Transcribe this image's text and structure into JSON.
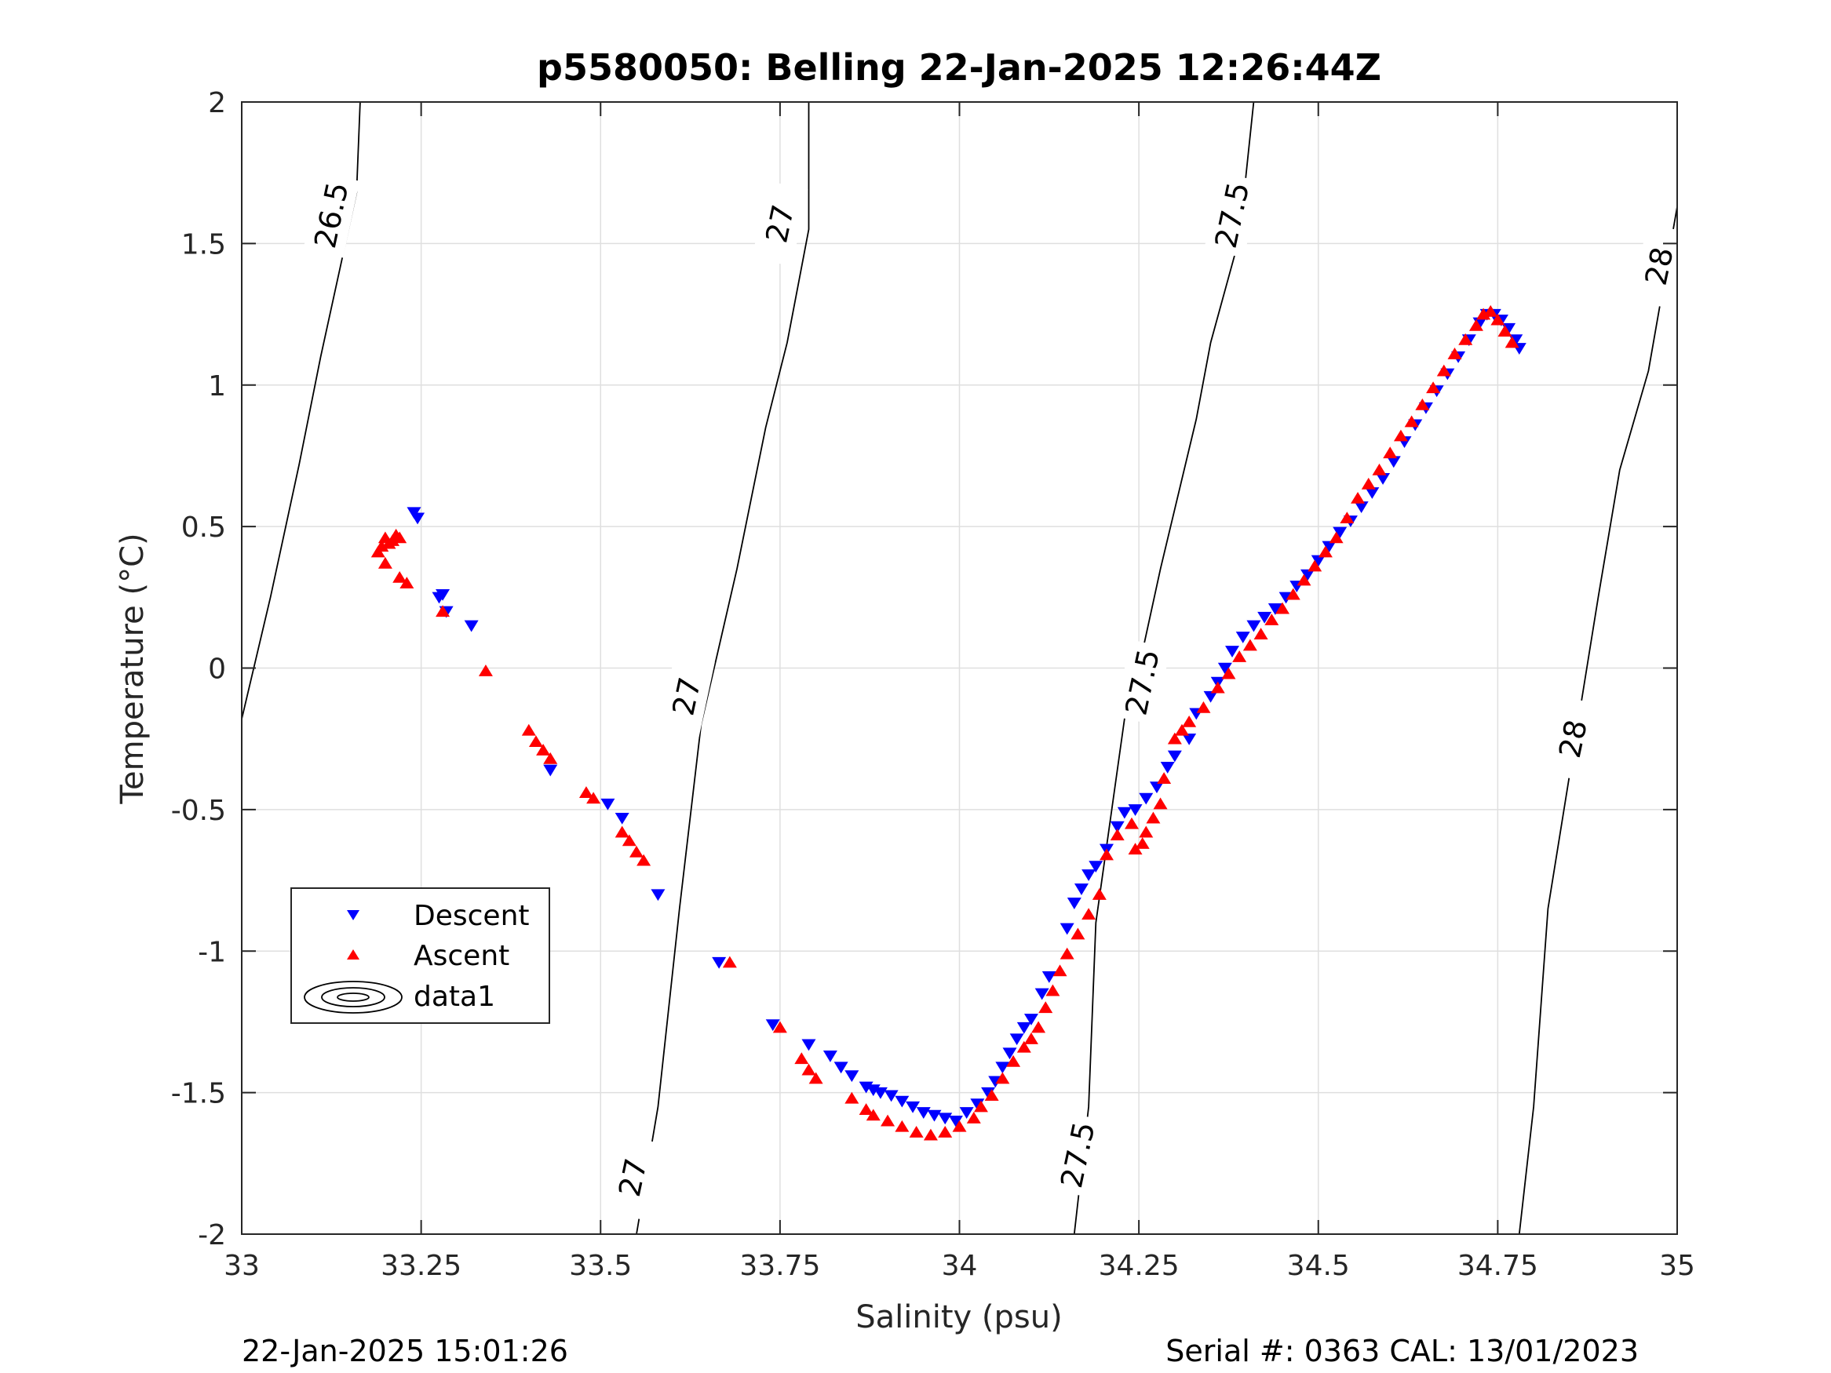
{
  "chart_data": {
    "type": "scatter",
    "title": "p5580050: Belling 22-Jan-2025 12:26:44Z",
    "xlabel": "Salinity (psu)",
    "ylabel": "Temperature (°C)",
    "xlim": [
      33,
      35
    ],
    "ylim": [
      -2,
      2
    ],
    "grid": true,
    "x_ticks": [
      33,
      33.25,
      33.5,
      33.75,
      34,
      34.25,
      34.5,
      34.75,
      35
    ],
    "x_tick_labels": [
      "33",
      "33.25",
      "33.5",
      "33.75",
      "34",
      "34.25",
      "34.5",
      "34.75",
      "35"
    ],
    "y_ticks": [
      2,
      1.5,
      1,
      0.5,
      0,
      -0.5,
      -1,
      -1.5,
      -2
    ],
    "y_tick_labels": [
      "2",
      "1.5",
      "1",
      "0.5",
      "0",
      "-0.5",
      "-1",
      "-1.5",
      "-2"
    ],
    "legend_position": "lower-left",
    "series": [
      {
        "name": "Descent",
        "marker": "triangle-down",
        "color": "#0000ff",
        "points": [
          [
            33.24,
            0.55
          ],
          [
            33.245,
            0.53
          ],
          [
            33.28,
            0.26
          ],
          [
            33.275,
            0.25
          ],
          [
            33.285,
            0.2
          ],
          [
            33.32,
            0.15
          ],
          [
            33.43,
            -0.36
          ],
          [
            33.51,
            -0.48
          ],
          [
            33.53,
            -0.53
          ],
          [
            33.58,
            -0.8
          ],
          [
            33.665,
            -1.04
          ],
          [
            33.74,
            -1.26
          ],
          [
            33.79,
            -1.33
          ],
          [
            33.82,
            -1.37
          ],
          [
            33.835,
            -1.41
          ],
          [
            33.85,
            -1.44
          ],
          [
            33.87,
            -1.48
          ],
          [
            33.88,
            -1.49
          ],
          [
            33.89,
            -1.5
          ],
          [
            33.905,
            -1.51
          ],
          [
            33.92,
            -1.53
          ],
          [
            33.935,
            -1.55
          ],
          [
            33.95,
            -1.57
          ],
          [
            33.965,
            -1.58
          ],
          [
            33.98,
            -1.59
          ],
          [
            33.995,
            -1.6
          ],
          [
            34.01,
            -1.57
          ],
          [
            34.025,
            -1.54
          ],
          [
            34.04,
            -1.5
          ],
          [
            34.05,
            -1.46
          ],
          [
            34.06,
            -1.41
          ],
          [
            34.07,
            -1.36
          ],
          [
            34.08,
            -1.31
          ],
          [
            34.09,
            -1.27
          ],
          [
            34.1,
            -1.24
          ],
          [
            34.115,
            -1.15
          ],
          [
            34.125,
            -1.09
          ],
          [
            34.15,
            -0.92
          ],
          [
            34.16,
            -0.83
          ],
          [
            34.17,
            -0.78
          ],
          [
            34.18,
            -0.73
          ],
          [
            34.19,
            -0.7
          ],
          [
            34.205,
            -0.64
          ],
          [
            34.22,
            -0.56
          ],
          [
            34.23,
            -0.51
          ],
          [
            34.245,
            -0.5
          ],
          [
            34.26,
            -0.46
          ],
          [
            34.275,
            -0.42
          ],
          [
            34.29,
            -0.35
          ],
          [
            34.3,
            -0.31
          ],
          [
            34.32,
            -0.25
          ],
          [
            34.33,
            -0.16
          ],
          [
            34.35,
            -0.1
          ],
          [
            34.36,
            -0.05
          ],
          [
            34.37,
            0.0
          ],
          [
            34.38,
            0.06
          ],
          [
            34.395,
            0.11
          ],
          [
            34.41,
            0.15
          ],
          [
            34.425,
            0.18
          ],
          [
            34.44,
            0.21
          ],
          [
            34.455,
            0.25
          ],
          [
            34.47,
            0.29
          ],
          [
            34.485,
            0.33
          ],
          [
            34.5,
            0.38
          ],
          [
            34.515,
            0.43
          ],
          [
            34.53,
            0.48
          ],
          [
            34.545,
            0.52
          ],
          [
            34.56,
            0.57
          ],
          [
            34.575,
            0.62
          ],
          [
            34.59,
            0.67
          ],
          [
            34.605,
            0.73
          ],
          [
            34.62,
            0.8
          ],
          [
            34.635,
            0.86
          ],
          [
            34.65,
            0.92
          ],
          [
            34.665,
            0.98
          ],
          [
            34.68,
            1.04
          ],
          [
            34.695,
            1.1
          ],
          [
            34.71,
            1.16
          ],
          [
            34.725,
            1.22
          ],
          [
            34.735,
            1.25
          ],
          [
            34.745,
            1.25
          ],
          [
            34.755,
            1.23
          ],
          [
            34.765,
            1.2
          ],
          [
            34.775,
            1.16
          ],
          [
            34.78,
            1.13
          ]
        ]
      },
      {
        "name": "Ascent",
        "marker": "triangle-up",
        "color": "#ff0000",
        "points": [
          [
            33.19,
            0.41
          ],
          [
            33.195,
            0.43
          ],
          [
            33.2,
            0.46
          ],
          [
            33.205,
            0.44
          ],
          [
            33.21,
            0.45
          ],
          [
            33.215,
            0.47
          ],
          [
            33.22,
            0.46
          ],
          [
            33.2,
            0.37
          ],
          [
            33.22,
            0.32
          ],
          [
            33.23,
            0.3
          ],
          [
            33.28,
            0.2
          ],
          [
            33.34,
            -0.01
          ],
          [
            33.4,
            -0.22
          ],
          [
            33.41,
            -0.26
          ],
          [
            33.42,
            -0.29
          ],
          [
            33.43,
            -0.32
          ],
          [
            33.48,
            -0.44
          ],
          [
            33.49,
            -0.46
          ],
          [
            33.53,
            -0.58
          ],
          [
            33.54,
            -0.61
          ],
          [
            33.55,
            -0.65
          ],
          [
            33.56,
            -0.68
          ],
          [
            33.68,
            -1.04
          ],
          [
            33.75,
            -1.27
          ],
          [
            33.78,
            -1.38
          ],
          [
            33.79,
            -1.42
          ],
          [
            33.8,
            -1.45
          ],
          [
            33.85,
            -1.52
          ],
          [
            33.87,
            -1.56
          ],
          [
            33.88,
            -1.58
          ],
          [
            33.9,
            -1.6
          ],
          [
            33.92,
            -1.62
          ],
          [
            33.94,
            -1.64
          ],
          [
            33.96,
            -1.65
          ],
          [
            33.98,
            -1.64
          ],
          [
            34.0,
            -1.62
          ],
          [
            34.02,
            -1.59
          ],
          [
            34.03,
            -1.55
          ],
          [
            34.045,
            -1.51
          ],
          [
            34.06,
            -1.45
          ],
          [
            34.075,
            -1.39
          ],
          [
            34.09,
            -1.34
          ],
          [
            34.1,
            -1.31
          ],
          [
            34.11,
            -1.27
          ],
          [
            34.12,
            -1.2
          ],
          [
            34.13,
            -1.14
          ],
          [
            34.14,
            -1.07
          ],
          [
            34.15,
            -1.01
          ],
          [
            34.165,
            -0.94
          ],
          [
            34.18,
            -0.87
          ],
          [
            34.195,
            -0.8
          ],
          [
            34.205,
            -0.66
          ],
          [
            34.22,
            -0.59
          ],
          [
            34.24,
            -0.55
          ],
          [
            34.245,
            -0.64
          ],
          [
            34.255,
            -0.62
          ],
          [
            34.26,
            -0.58
          ],
          [
            34.27,
            -0.53
          ],
          [
            34.28,
            -0.48
          ],
          [
            34.285,
            -0.39
          ],
          [
            34.3,
            -0.25
          ],
          [
            34.31,
            -0.22
          ],
          [
            34.32,
            -0.19
          ],
          [
            34.34,
            -0.14
          ],
          [
            34.36,
            -0.07
          ],
          [
            34.375,
            -0.02
          ],
          [
            34.39,
            0.04
          ],
          [
            34.405,
            0.08
          ],
          [
            34.42,
            0.12
          ],
          [
            34.435,
            0.17
          ],
          [
            34.45,
            0.21
          ],
          [
            34.465,
            0.26
          ],
          [
            34.48,
            0.31
          ],
          [
            34.495,
            0.36
          ],
          [
            34.51,
            0.41
          ],
          [
            34.525,
            0.46
          ],
          [
            34.54,
            0.53
          ],
          [
            34.555,
            0.6
          ],
          [
            34.57,
            0.65
          ],
          [
            34.585,
            0.7
          ],
          [
            34.6,
            0.76
          ],
          [
            34.615,
            0.82
          ],
          [
            34.63,
            0.87
          ],
          [
            34.645,
            0.93
          ],
          [
            34.66,
            0.99
          ],
          [
            34.675,
            1.05
          ],
          [
            34.69,
            1.11
          ],
          [
            34.705,
            1.16
          ],
          [
            34.72,
            1.21
          ],
          [
            34.73,
            1.25
          ],
          [
            34.74,
            1.26
          ],
          [
            34.75,
            1.23
          ],
          [
            34.76,
            1.19
          ],
          [
            34.77,
            1.15
          ]
        ]
      }
    ],
    "legend": [
      {
        "label": "Descent",
        "marker": "triangle-down",
        "color": "#0000ff"
      },
      {
        "label": "Ascent",
        "marker": "triangle-up",
        "color": "#ff0000"
      },
      {
        "label": "data1",
        "marker": "contour",
        "color": "#000000"
      }
    ],
    "density_contours": [
      {
        "level": "26.5",
        "points": [
          [
            33.0,
            -0.18
          ],
          [
            33.04,
            0.25
          ],
          [
            33.08,
            0.72
          ],
          [
            33.11,
            1.1
          ],
          [
            33.16,
            1.68
          ],
          [
            33.165,
            2.0
          ]
        ],
        "labels": [
          [
            33.125,
            1.6
          ]
        ]
      },
      {
        "level": "27",
        "points": [
          [
            33.55,
            -2.0
          ],
          [
            33.58,
            -1.55
          ],
          [
            33.61,
            -0.85
          ],
          [
            33.64,
            -0.2
          ],
          [
            33.69,
            0.35
          ],
          [
            33.73,
            0.85
          ],
          [
            33.76,
            1.15
          ],
          [
            33.79,
            1.55
          ],
          [
            33.79,
            2.0
          ]
        ],
        "labels": [
          [
            33.545,
            -1.8
          ],
          [
            33.62,
            -0.1
          ],
          [
            33.75,
            1.57
          ]
        ]
      },
      {
        "level": "27.5",
        "points": [
          [
            34.16,
            -2.0
          ],
          [
            34.18,
            -1.55
          ],
          [
            34.19,
            -0.9
          ],
          [
            34.23,
            -0.18
          ],
          [
            34.25,
            0.0
          ],
          [
            34.28,
            0.35
          ],
          [
            34.33,
            0.88
          ],
          [
            34.35,
            1.15
          ],
          [
            34.39,
            1.52
          ],
          [
            34.41,
            2.0
          ]
        ],
        "labels": [
          [
            34.165,
            -1.72
          ],
          [
            34.255,
            -0.05
          ],
          [
            34.38,
            1.6
          ]
        ]
      },
      {
        "level": "28",
        "points": [
          [
            34.78,
            -2.0
          ],
          [
            34.8,
            -1.55
          ],
          [
            34.82,
            -0.85
          ],
          [
            34.855,
            -0.3
          ],
          [
            34.89,
            0.25
          ],
          [
            34.92,
            0.7
          ],
          [
            34.96,
            1.05
          ],
          [
            35.0,
            1.63
          ]
        ],
        "labels": [
          [
            34.855,
            -0.25
          ],
          [
            34.975,
            1.42
          ]
        ]
      }
    ]
  },
  "footer": {
    "timestamp": "22-Jan-2025 15:01:26",
    "serial": "Serial #: 0363  CAL: 13/01/2023"
  }
}
